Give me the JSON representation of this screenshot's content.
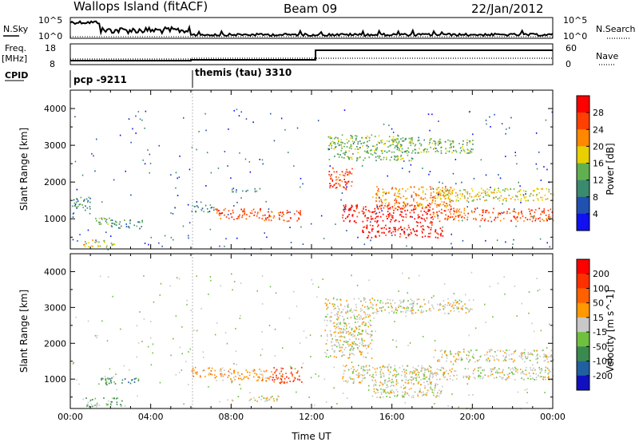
{
  "header": {
    "title": "Wallops Island (fitACF)",
    "beam": "Beam 09",
    "date": "22/Jan/2012"
  },
  "status_panels": {
    "nsky_label": "N.Sky",
    "nsky_ticks": [
      "10^5",
      "10^0"
    ],
    "nsearch_label": "N.Search",
    "nsearch_ticks": [
      "10^5",
      "10^0"
    ],
    "freq_label": "Freq.",
    "freq_unit": "[MHz]",
    "freq_ticks": [
      "18",
      "8"
    ],
    "nave_label": "Nave",
    "nave_ticks": [
      "60",
      "0"
    ],
    "cpid_label": "CPID",
    "cpid_modes": [
      {
        "name": "pcp -9211",
        "start_hour": 0,
        "end_hour": 6
      },
      {
        "name": "themis (tau) 3310",
        "start_hour": 6,
        "end_hour": 24
      }
    ]
  },
  "chart_data": [
    {
      "type": "heatmap",
      "panel": "power",
      "ylabel": "Slant Range [km]",
      "xlabel": "",
      "x_ticks": [
        "00:00",
        "04:00",
        "08:00",
        "12:00",
        "16:00",
        "20:00",
        "00:00"
      ],
      "xlim_hours": [
        0,
        24
      ],
      "ylim": [
        180,
        4500
      ],
      "y_ticks": [
        1000,
        2000,
        3000,
        4000
      ],
      "colorbar": {
        "label": "Power [dB]",
        "ticks": [
          "4",
          "8",
          "12",
          "16",
          "20",
          "24",
          "28"
        ],
        "colors": [
          "#1010f0",
          "#2050b0",
          "#3a8a70",
          "#60b050",
          "#e8d000",
          "#ff8800",
          "#ff4000",
          "#ff0000"
        ]
      },
      "echo_regions": [
        {
          "t0": 0.0,
          "t1": 1.0,
          "r0": 1250,
          "r1": 1600,
          "level": 2
        },
        {
          "t0": 1.0,
          "t1": 2.0,
          "r0": 850,
          "r1": 1050,
          "level": 3
        },
        {
          "t0": 2.0,
          "t1": 3.6,
          "r0": 750,
          "r1": 1000,
          "level": 2
        },
        {
          "t0": 0.6,
          "t1": 2.2,
          "r0": 250,
          "r1": 450,
          "level": 4
        },
        {
          "t0": 6.0,
          "t1": 7.2,
          "r0": 1200,
          "r1": 1400,
          "level": 2
        },
        {
          "t0": 7.2,
          "t1": 9.5,
          "r0": 1000,
          "r1": 1300,
          "level": 6
        },
        {
          "t0": 9.5,
          "t1": 11.5,
          "r0": 950,
          "r1": 1250,
          "level": 6
        },
        {
          "t0": 8.0,
          "t1": 9.5,
          "r0": 1750,
          "r1": 1850,
          "level": 2
        },
        {
          "t0": 12.8,
          "t1": 14.0,
          "r0": 1800,
          "r1": 2400,
          "level": 6
        },
        {
          "t0": 12.8,
          "t1": 17.0,
          "r0": 2600,
          "r1": 3300,
          "level": 3
        },
        {
          "t0": 13.5,
          "t1": 18.0,
          "r0": 900,
          "r1": 1400,
          "level": 7
        },
        {
          "t0": 14.5,
          "t1": 18.5,
          "r0": 500,
          "r1": 850,
          "level": 7
        },
        {
          "t0": 15.0,
          "t1": 19.0,
          "r0": 1300,
          "r1": 1900,
          "level": 5
        },
        {
          "t0": 18.0,
          "t1": 24.0,
          "r0": 950,
          "r1": 1300,
          "level": 6
        },
        {
          "t0": 18.0,
          "t1": 24.0,
          "r0": 1500,
          "r1": 1850,
          "level": 4
        },
        {
          "t0": 16.0,
          "t1": 20.0,
          "r0": 2800,
          "r1": 3200,
          "level": 3
        }
      ]
    },
    {
      "type": "heatmap",
      "panel": "velocity",
      "ylabel": "Slant Range [km]",
      "xlabel": "Time UT",
      "x_ticks": [
        "00:00",
        "04:00",
        "08:00",
        "12:00",
        "16:00",
        "20:00",
        "00:00"
      ],
      "xlim_hours": [
        0,
        24
      ],
      "ylim": [
        180,
        4500
      ],
      "y_ticks": [
        1000,
        2000,
        3000,
        4000
      ],
      "colorbar": {
        "label": "Velocity [m s^-1]",
        "ticks": [
          "200",
          "100",
          "50",
          "15",
          "-15",
          "-50",
          "-100",
          "-200"
        ],
        "colors": [
          "#1010c0",
          "#2060a0",
          "#3a8a50",
          "#70c040",
          "#c8c8c8",
          "#ff9900",
          "#ff6000",
          "#ff3000",
          "#ff0000"
        ]
      },
      "echo_regions": [
        {
          "t0": 0.6,
          "t1": 2.6,
          "r0": 250,
          "r1": 500,
          "level": 3
        },
        {
          "t0": 1.5,
          "t1": 3.5,
          "r0": 850,
          "r1": 1050,
          "level": 2
        },
        {
          "t0": 6.0,
          "t1": 7.5,
          "r0": 1050,
          "r1": 1350,
          "level": 5
        },
        {
          "t0": 7.5,
          "t1": 10.0,
          "r0": 950,
          "r1": 1300,
          "level": 5
        },
        {
          "t0": 10.0,
          "t1": 11.5,
          "r0": 900,
          "r1": 1350,
          "level": 7
        },
        {
          "t0": 8.0,
          "t1": 10.5,
          "r0": 400,
          "r1": 550,
          "level": 4
        },
        {
          "t0": 12.6,
          "t1": 15.0,
          "r0": 1600,
          "r1": 3300,
          "level": 4
        },
        {
          "t0": 13.5,
          "t1": 18.0,
          "r0": 900,
          "r1": 1400,
          "level": 4
        },
        {
          "t0": 15.0,
          "t1": 18.5,
          "r0": 500,
          "r1": 900,
          "level": 4
        },
        {
          "t0": 17.0,
          "t1": 24.0,
          "r0": 1000,
          "r1": 1350,
          "level": 4
        },
        {
          "t0": 18.0,
          "t1": 24.0,
          "r0": 1500,
          "r1": 1850,
          "level": 4
        },
        {
          "t0": 15.0,
          "t1": 20.0,
          "r0": 2850,
          "r1": 3250,
          "level": 4
        }
      ]
    }
  ]
}
